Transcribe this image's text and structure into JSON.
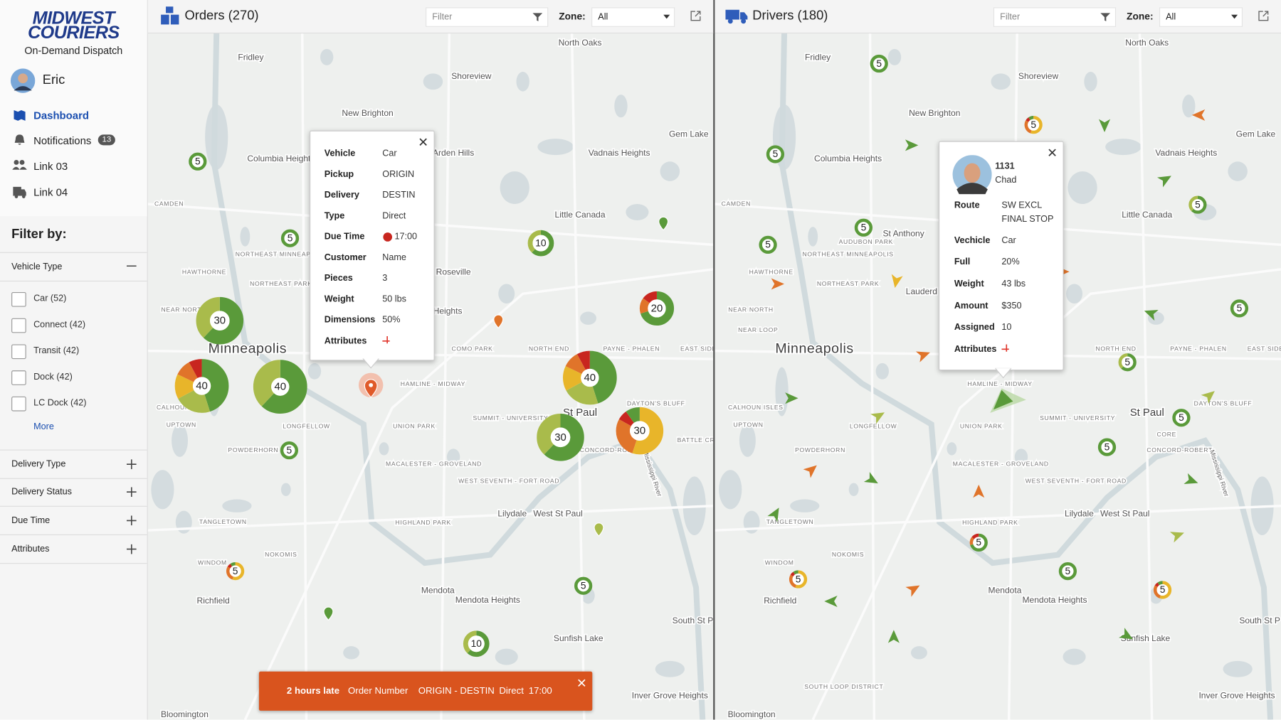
{
  "sidebar": {
    "brand": [
      "MIDWEST",
      "COURIERS"
    ],
    "tagline": "On-Demand Dispatch",
    "user": "Eric",
    "nav": [
      {
        "label": "Dashboard"
      },
      {
        "label": "Notifications",
        "badge": 13
      },
      {
        "label": "Link 03"
      },
      {
        "label": "Link 04"
      }
    ],
    "filter_title": "Filter by:",
    "vehicle_type": {
      "title": "Vehicle Type",
      "options": [
        "Car (52)",
        "Connect (42)",
        "Transit (42)",
        "Dock (42)",
        "LC Dock (42)"
      ],
      "more": "More"
    },
    "sections": [
      "Delivery Type",
      "Delivery Status",
      "Due Time",
      "Attributes"
    ]
  },
  "orders": {
    "title": "Orders (270)",
    "filter": "Filter",
    "zone_label": "Zone:",
    "zone": "All",
    "clusters": [
      5,
      5,
      30,
      40,
      40,
      10,
      20,
      40,
      30,
      30,
      5,
      5,
      5,
      10
    ],
    "popup": [
      {
        "label": "Vehicle",
        "value": "Car"
      },
      {
        "label": "Pickup",
        "value": "ORIGIN"
      },
      {
        "label": "Delivery",
        "value": "DESTIN"
      },
      {
        "label": "Type",
        "value": "Direct"
      },
      {
        "label": "Due Time",
        "value": "17:00"
      },
      {
        "label": "Customer",
        "value": "Name"
      },
      {
        "label": "Pieces",
        "value": "3"
      },
      {
        "label": "Weight",
        "value": "50 lbs"
      },
      {
        "label": "Dimensions",
        "value": "50%"
      },
      {
        "label": "Attributes"
      }
    ],
    "alert": {
      "status": "2 hours late",
      "order": "Order Number",
      "route": "ORIGIN - DESTIN",
      "type": "Direct",
      "time": "17:00"
    },
    "map_labels": [
      "Arden Hills",
      "Roseville",
      "Heights",
      "COMO PARK",
      "CALHOUN",
      "BATTLE CR"
    ]
  },
  "drivers": {
    "title": "Drivers (180)",
    "filter": "Filter",
    "zone_label": "Zone:",
    "zone": "All",
    "clusters": [
      5,
      5,
      5,
      5,
      5,
      5,
      5,
      5,
      5,
      5,
      5,
      5,
      5,
      5
    ],
    "popup": {
      "id": "1131",
      "name": "Chad",
      "fields": [
        {
          "label": "Route",
          "value": "SW EXCL FINAL STOP"
        },
        {
          "label": "Vechicle",
          "value": "Car"
        },
        {
          "label": "Full",
          "value": "20%"
        },
        {
          "label": "Weight",
          "value": "43 lbs"
        },
        {
          "label": "Amount",
          "value": "$350"
        },
        {
          "label": "Assigned",
          "value": "10"
        },
        {
          "label": "Attributes"
        }
      ]
    },
    "map_labels": [
      "St Anthony",
      "AUDUBON PARK",
      "Lauderd",
      "NEAR LOOP",
      "CALHOUN ISLES",
      "CORE",
      "SOUTH LOOP DISTRICT"
    ]
  },
  "map_labels": [
    "North Oaks",
    "Fridley",
    "Shoreview",
    "New Brighton",
    "Gem Lake",
    "Vadnais Heights",
    "Columbia Heights",
    "Little Canada",
    "CAMDEN",
    "NORTHEAST MINNEAPOLIS",
    "HAWTHORNE",
    "NORTHEAST PARK",
    "NEAR NORTH",
    "Minneapolis",
    "NORTH END",
    "PAYNE - PHALEN",
    "EAST SIDE",
    "HAMLINE - MIDWAY",
    "St Paul",
    "DAYTON'S BLUFF",
    "UPTOWN",
    "LONGFELLOW",
    "UNION PARK",
    "SUMMIT - UNIVERSITY",
    "CONCORD-ROBERT",
    "POWDERHORN",
    "MACALESTER - GROVELAND",
    "WEST SEVENTH - FORT ROAD",
    "HIGHLAND PARK",
    "Lilydale",
    "West St Paul",
    "TANGLETOWN",
    "NOKOMIS",
    "WINDOM",
    "Richfield",
    "Mendota",
    "Mendota Heights",
    "Sunfish Lake",
    "South St P",
    "Inver Grove Heights",
    "Bloomington",
    "Mississippi River"
  ]
}
